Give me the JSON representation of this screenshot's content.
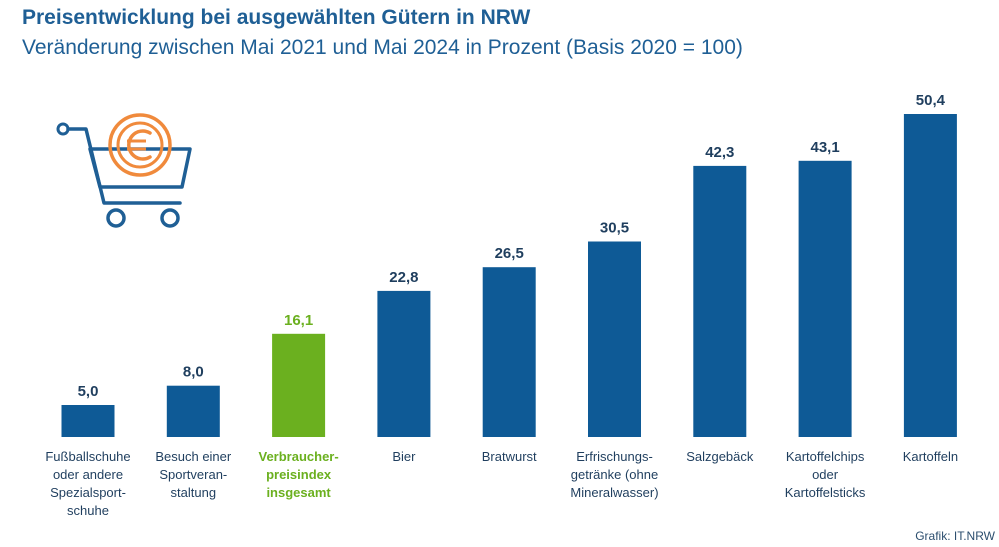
{
  "title": "Preisentwicklung bei ausgewählten Gütern in NRW",
  "subtitle": "Veränderung zwischen Mai 2021 und Mai 2024 in Prozent (Basis 2020 = 100)",
  "source": "Grafik: IT.NRW",
  "icon": "shopping-cart-euro-icon",
  "colors": {
    "bar": "#0e5a96",
    "highlight": "#6bb01f",
    "text": "#1f3e5e",
    "title": "#1f5f95",
    "icon_cart": "#1f5f95",
    "icon_coin": "#f08a3c"
  },
  "chart_data": {
    "type": "bar",
    "categories": [
      [
        "Fußballschuhe",
        "oder andere",
        "Spezialsport-",
        "schuhe"
      ],
      [
        "Besuch einer",
        "Sportveran-",
        "staltung"
      ],
      [
        "Verbraucher-",
        "preisindex",
        "insgesamt"
      ],
      [
        "Bier"
      ],
      [
        "Bratwurst"
      ],
      [
        "Erfrischungs-",
        "getränke (ohne",
        "Mineralwasser)"
      ],
      [
        "Salzgebäck"
      ],
      [
        "Kartoffelchips",
        "oder",
        "Kartoffelsticks"
      ],
      [
        "Kartoffeln"
      ]
    ],
    "values": [
      5.0,
      8.0,
      16.1,
      22.8,
      26.5,
      30.5,
      42.3,
      43.1,
      50.4
    ],
    "value_labels": [
      "5,0",
      "8,0",
      "16,1",
      "22,8",
      "26,5",
      "30,5",
      "42,3",
      "43,1",
      "50,4"
    ],
    "highlight_index": 2,
    "ylim": [
      0,
      50.4
    ],
    "grid": false,
    "legend": "none"
  }
}
